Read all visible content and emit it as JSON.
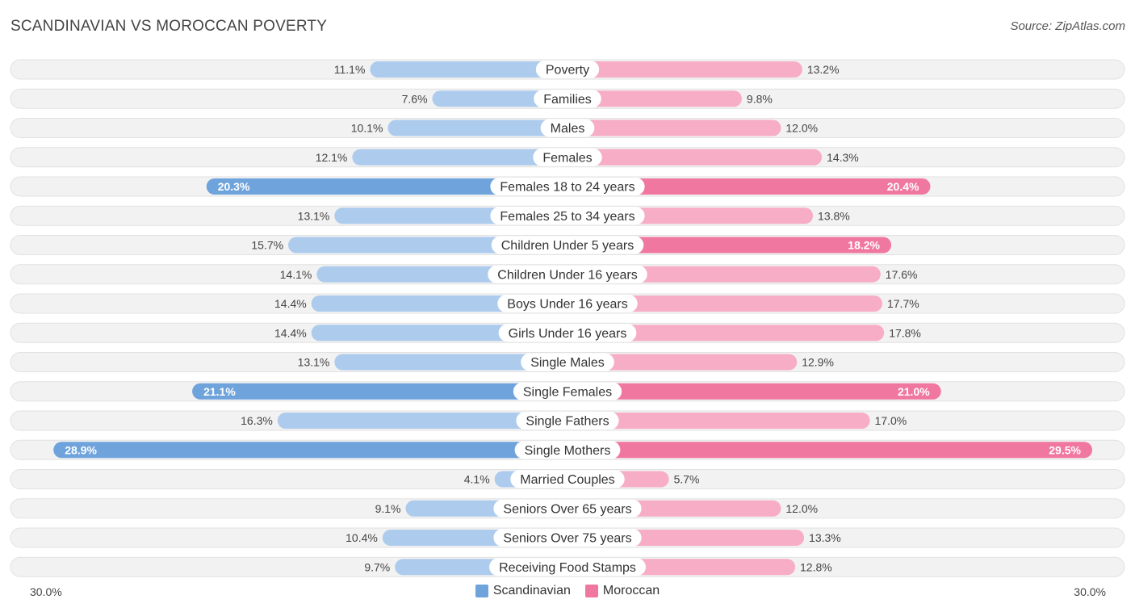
{
  "title": "SCANDINAVIAN VS MOROCCAN POVERTY",
  "source": "Source: ZipAtlas.com",
  "colors": {
    "left": "#6fa3dc",
    "left_light": "#a9c8ec",
    "right": "#f0779f",
    "right_light": "#f6a9c2",
    "row_bg": "#f2f2f2",
    "row_border": "#e2e2e2"
  },
  "legend": {
    "left_label": "Scandinavian",
    "right_label": "Moroccan"
  },
  "axis": {
    "left_label": "30.0%",
    "right_label": "30.0%"
  },
  "chart_data": {
    "type": "bar",
    "orientation": "horizontal-diverging",
    "title": "SCANDINAVIAN VS MOROCCAN POVERTY",
    "xlim": [
      0,
      30
    ],
    "categories": [
      "Poverty",
      "Families",
      "Males",
      "Females",
      "Females 18 to 24 years",
      "Females 25 to 34 years",
      "Children Under 5 years",
      "Children Under 16 years",
      "Boys Under 16 years",
      "Girls Under 16 years",
      "Single Males",
      "Single Females",
      "Single Fathers",
      "Single Mothers",
      "Married Couples",
      "Seniors Over 65 years",
      "Seniors Over 75 years",
      "Receiving Food Stamps"
    ],
    "series": [
      {
        "name": "Scandinavian",
        "values": [
          11.1,
          7.6,
          10.1,
          12.1,
          20.3,
          13.1,
          15.7,
          14.1,
          14.4,
          14.4,
          13.1,
          21.1,
          16.3,
          28.9,
          4.1,
          9.1,
          10.4,
          9.7
        ],
        "labels": [
          "11.1%",
          "7.6%",
          "10.1%",
          "12.1%",
          "20.3%",
          "13.1%",
          "15.7%",
          "14.1%",
          "14.4%",
          "14.4%",
          "13.1%",
          "21.1%",
          "16.3%",
          "28.9%",
          "4.1%",
          "9.1%",
          "10.4%",
          "9.7%"
        ]
      },
      {
        "name": "Moroccan",
        "values": [
          13.2,
          9.8,
          12.0,
          14.3,
          20.4,
          13.8,
          18.2,
          17.6,
          17.7,
          17.8,
          12.9,
          21.0,
          17.0,
          29.5,
          5.7,
          12.0,
          13.3,
          12.8
        ],
        "labels": [
          "13.2%",
          "9.8%",
          "12.0%",
          "14.3%",
          "20.4%",
          "13.8%",
          "18.2%",
          "17.6%",
          "17.7%",
          "17.8%",
          "12.9%",
          "21.0%",
          "17.0%",
          "29.5%",
          "5.7%",
          "12.0%",
          "13.3%",
          "12.8%"
        ]
      }
    ]
  }
}
